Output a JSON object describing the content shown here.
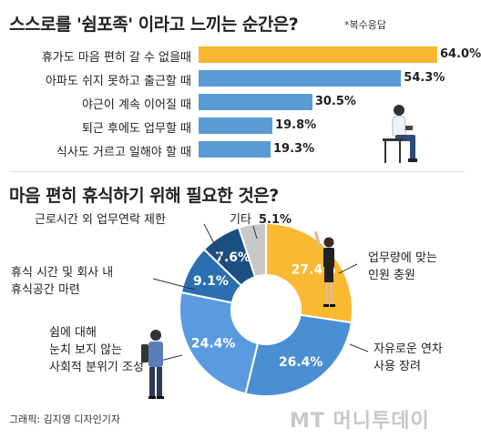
{
  "chart_data": [
    {
      "type": "bar",
      "title": "스스로를 '쉼포족' 이라고 느끼는 순간은?",
      "note": "*복수응답",
      "categories": [
        "휴가도 마음 편히 갈 수 없을때",
        "아파도 쉬지 못하고 출근할 때",
        "야근이 계속 이어질 때",
        "퇴근 후에도 업무할 때",
        "식사도 거르고 일해야 할 때"
      ],
      "values": [
        64.0,
        54.3,
        30.5,
        19.8,
        19.3
      ],
      "value_labels": [
        "64.0%",
        "54.3%",
        "30.5%",
        "19.8%",
        "19.3%"
      ],
      "xlim": [
        0,
        70
      ],
      "colors": [
        "#f7b731",
        "#5b9bd5",
        "#5b9bd5",
        "#5b9bd5",
        "#5b9bd5"
      ]
    },
    {
      "type": "pie",
      "title": "마음 편히 휴식하기 위해 필요한 것은?",
      "slices": [
        {
          "label": "업무량에 맞는 인원 충원",
          "lines": [
            "업무량에 맞는",
            "인원 충원"
          ],
          "value": 27.4,
          "value_label": "27.4%",
          "color": "#f9b931"
        },
        {
          "label": "자유로운 연차 사용 장려",
          "lines": [
            "자유로운 연차",
            "사용 장려"
          ],
          "value": 26.4,
          "value_label": "26.4%",
          "color": "#4a8fd4"
        },
        {
          "label": "쉼에 대해 눈치 보지 않는 사회적 분위기 조성",
          "lines": [
            "쉼에 대해",
            "눈치 보지 않는",
            "사회적 분위기 조성"
          ],
          "value": 24.4,
          "value_label": "24.4%",
          "color": "#5a9be0"
        },
        {
          "label": "휴식 시간 및 회사 내 휴식공간 마련",
          "lines": [
            "휴식 시간 및 회사 내",
            "휴식공간 마련"
          ],
          "value": 9.1,
          "value_label": "9.1%",
          "color": "#2c6fb0"
        },
        {
          "label": "근로시간 외 업무연락 제한",
          "lines": [
            "근로시간 외 업무연락 제한"
          ],
          "value": 7.6,
          "value_label": "7.6%",
          "color": "#1b4f82"
        },
        {
          "label": "기타",
          "lines": [
            "기타"
          ],
          "value": 5.1,
          "value_label": "5.1%",
          "color": "#c8c8c8"
        }
      ]
    }
  ],
  "credit": "그래픽: 김지영 디자인기자",
  "watermark": "MT 머니투데이",
  "colors": {
    "accent": "#f7b731",
    "primary": "#5b9bd5",
    "dark": "#1b4f82"
  }
}
